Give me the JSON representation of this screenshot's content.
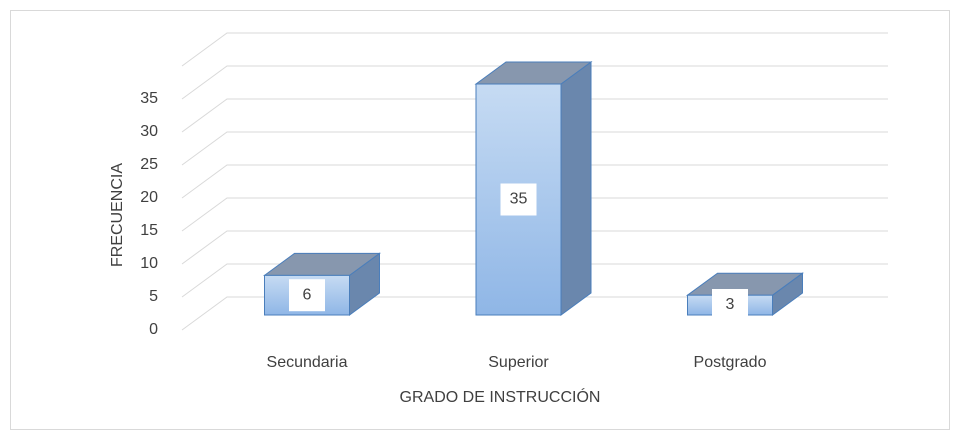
{
  "chart_data": {
    "type": "bar3d",
    "x_label": "GRADO DE INSTRUCCIÓN",
    "y_label": "FRECUENCIA",
    "categories": [
      "Secundaria",
      "Superior",
      "Postgrado"
    ],
    "values": [
      6,
      35,
      3
    ],
    "color": "#9dc0ea",
    "ylim": [
      0,
      40
    ],
    "yticks": [
      0,
      5,
      10,
      15,
      20,
      25,
      30,
      35
    ],
    "grid": true
  }
}
